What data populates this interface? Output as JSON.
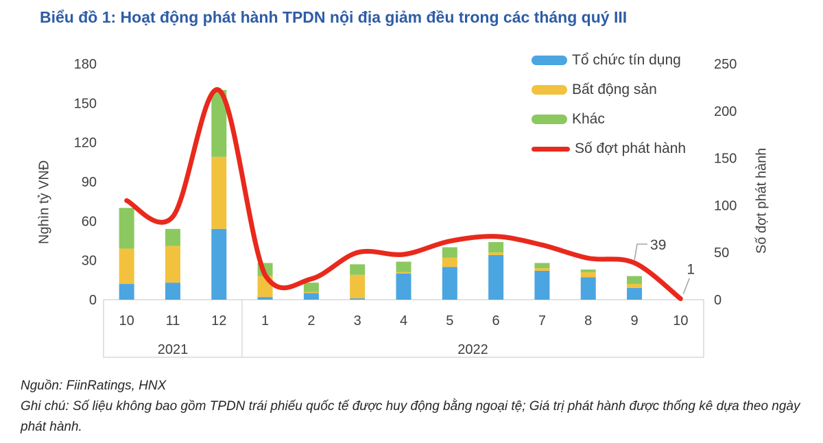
{
  "title": "Biểu đồ 1: Hoạt động phát hành TPDN nội địa giảm đều trong các tháng quý III",
  "colors": {
    "title_blue": "#2E5CA6",
    "credit_blue": "#4BA5E1",
    "realestate_yellow": "#F2C23E",
    "other_green": "#8CC860",
    "line_red": "#E8291C",
    "text_gray": "#404040",
    "border_gray": "#D9D9D9",
    "leader_gray": "#A6A6A6"
  },
  "chart_data": {
    "type": "bar",
    "subtype": "stacked-columns-with-line",
    "categories": [
      "10",
      "11",
      "12",
      "1",
      "2",
      "3",
      "4",
      "5",
      "6",
      "7",
      "8",
      "9",
      "10"
    ],
    "year_groups": [
      {
        "label": "2021",
        "start": 0,
        "span": 3
      },
      {
        "label": "2022",
        "start": 3,
        "span": 10
      }
    ],
    "left_axis": {
      "title": "Nghìn tỷ VNĐ",
      "ticks": [
        0,
        30,
        60,
        90,
        120,
        150,
        180
      ],
      "max": 180
    },
    "right_axis": {
      "title": "Số đợt phát hành",
      "ticks": [
        0,
        50,
        100,
        150,
        200,
        250
      ],
      "max": 250
    },
    "grid": "off",
    "legend_position": "top-right",
    "series": [
      {
        "name": "Tổ chức tín dụng",
        "color": "#4BA5E1",
        "values": [
          12,
          13,
          54,
          2,
          5,
          1,
          20,
          25,
          34,
          22,
          17,
          9,
          0
        ]
      },
      {
        "name": "Bất động sản",
        "color": "#F2C23E",
        "values": [
          27,
          28,
          55,
          16,
          1,
          18,
          1,
          7,
          2,
          2,
          4,
          3,
          0
        ]
      },
      {
        "name": "Khác",
        "color": "#8CC860",
        "values": [
          31,
          13,
          51,
          10,
          7,
          8,
          8,
          8,
          8,
          4,
          2,
          6,
          0
        ]
      }
    ],
    "line": {
      "name": "Số đợt phát hành",
      "color": "#E8291C",
      "axis": "right",
      "values": [
        105,
        88,
        222,
        26,
        22,
        50,
        48,
        62,
        67,
        58,
        44,
        39,
        1
      ],
      "callouts": [
        {
          "index": 11,
          "text": "39"
        },
        {
          "index": 12,
          "text": "1"
        }
      ]
    }
  },
  "footer": {
    "source": "Nguồn: FiinRatings, HNX",
    "note": "Ghi chú: Số liệu không bao gồm TPDN trái phiếu quốc tế được huy động bằng ngoại tệ; Giá trị phát hành được thống kê dựa theo ngày phát hành."
  }
}
